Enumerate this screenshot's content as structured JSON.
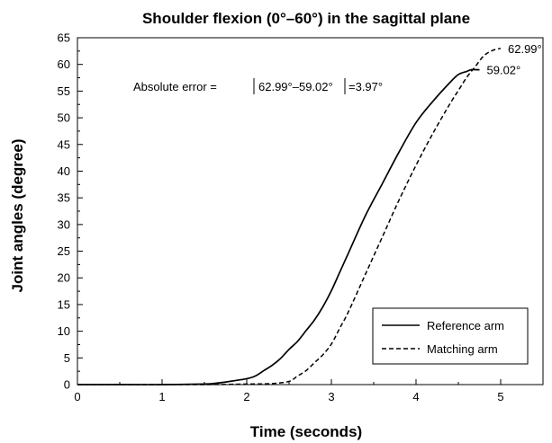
{
  "chart_data": {
    "type": "line",
    "title": "Shoulder flexion (0°–60°) in the sagittal plane",
    "xlabel": "Time (seconds)",
    "ylabel": "Joint angles (degree)",
    "xlim": [
      0,
      5.5
    ],
    "ylim": [
      0,
      65
    ],
    "xticks": [
      0,
      1,
      2,
      3,
      4,
      5
    ],
    "yticks": [
      0,
      5,
      10,
      15,
      20,
      25,
      30,
      35,
      40,
      45,
      50,
      55,
      60,
      65
    ],
    "grid": false,
    "legend_position": "bottom-right",
    "series": [
      {
        "name": "Reference arm",
        "style": "solid",
        "color": "#000000",
        "x": [
          0,
          0.5,
          1.0,
          1.5,
          1.6,
          1.8,
          2.0,
          2.1,
          2.2,
          2.3,
          2.4,
          2.5,
          2.6,
          2.7,
          2.8,
          2.9,
          3.0,
          3.1,
          3.2,
          3.4,
          3.6,
          3.8,
          4.0,
          4.2,
          4.4,
          4.5,
          4.6,
          4.65,
          4.7,
          4.75
        ],
        "values": [
          0,
          0,
          0,
          0.1,
          0.2,
          0.6,
          1.1,
          1.6,
          2.6,
          3.6,
          4.9,
          6.6,
          8.1,
          10.1,
          12.1,
          14.6,
          17.6,
          21.1,
          24.6,
          31.6,
          37.6,
          43.6,
          49.1,
          53.1,
          56.6,
          58.1,
          58.7,
          59.0,
          59.02,
          59.0
        ]
      },
      {
        "name": "Matching arm",
        "style": "dashed",
        "color": "#000000",
        "x": [
          0,
          0.5,
          1.0,
          1.5,
          2.0,
          2.3,
          2.5,
          2.6,
          2.7,
          2.8,
          2.9,
          3.0,
          3.1,
          3.2,
          3.4,
          3.6,
          3.8,
          4.0,
          4.2,
          4.4,
          4.5,
          4.6,
          4.7,
          4.8,
          4.9,
          5.0
        ],
        "values": [
          0,
          0,
          0,
          0,
          0.1,
          0.2,
          0.6,
          1.6,
          2.6,
          4.1,
          5.6,
          7.6,
          10.6,
          13.6,
          20.6,
          27.6,
          34.6,
          41.1,
          47.1,
          52.6,
          55.1,
          57.6,
          59.6,
          61.6,
          62.6,
          62.99
        ]
      }
    ],
    "annotations": [
      {
        "text": "62.99°",
        "series": 1,
        "x": 5.0,
        "y": 62.99
      },
      {
        "text": "59.02°",
        "series": 0,
        "x": 4.75,
        "y": 59.02
      }
    ],
    "error_note": {
      "prefix": "Absolute error = ",
      "inner": "62.99°–59.02°",
      "suffix": "=3.97°"
    }
  }
}
